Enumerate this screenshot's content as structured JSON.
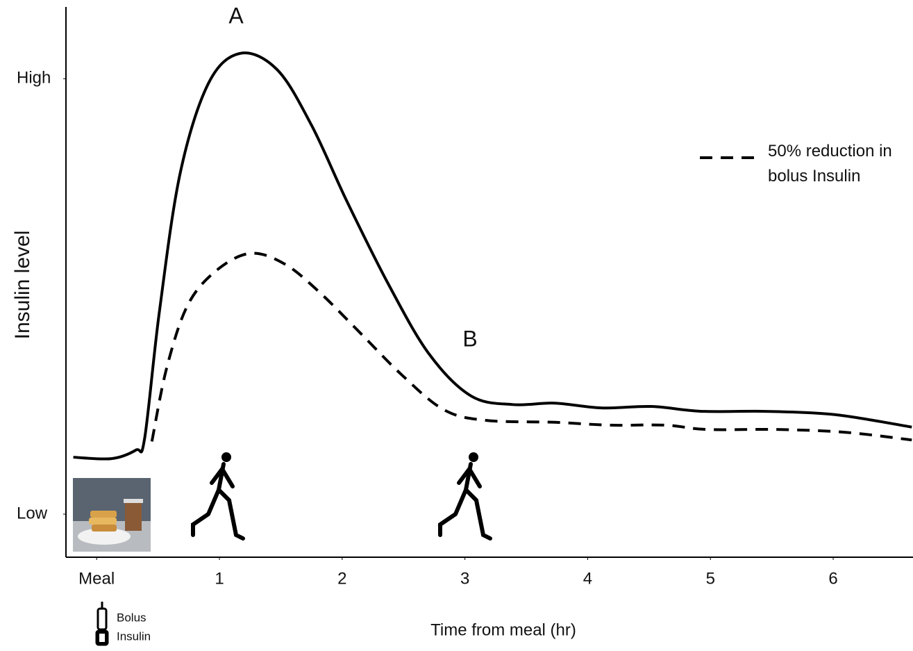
{
  "chart_data": {
    "type": "line",
    "ylabel": "Insulin level",
    "xlabel": "Time  from meal (hr)",
    "annotations": [
      "A",
      "B",
      "Bolus",
      "Insulin"
    ],
    "xlim": [
      -0.25,
      6.65
    ],
    "ylim": [
      0,
      115
    ],
    "xticks": [
      {
        "value": 0,
        "label": "Meal"
      },
      1,
      2,
      3,
      4,
      5,
      6
    ],
    "yticks": [
      {
        "value": 9,
        "label": "Low"
      },
      {
        "value": 100,
        "label": "High"
      }
    ],
    "legend": "upper right",
    "series": [
      {
        "color": "#000000",
        "dash": false,
        "x": [
          -0.19,
          0.12,
          0.32,
          0.39,
          0.51,
          0.68,
          0.91,
          1.17,
          1.47,
          1.75,
          2.04,
          2.38,
          2.71,
          3.05,
          3.39,
          3.73,
          4.11,
          4.52,
          4.92,
          5.42,
          5.87,
          6.16,
          6.64
        ],
        "values": [
          20.9,
          20.6,
          22.4,
          24.7,
          51.1,
          80.2,
          99.0,
          105.3,
          101.9,
          90.3,
          74.3,
          56.9,
          42.4,
          33.7,
          31.9,
          32.2,
          31.2,
          31.5,
          30.5,
          30.5,
          30.1,
          29.3,
          27.2
        ]
      },
      {
        "name": "50% reduction in bolus Insulin",
        "color": "#000000",
        "dash": true,
        "x": [
          0.45,
          0.57,
          0.74,
          0.97,
          1.25,
          1.53,
          1.81,
          2.15,
          2.49,
          2.83,
          3.17,
          3.73,
          4.18,
          4.63,
          4.97,
          5.54,
          6.1,
          6.64
        ],
        "values": [
          24.2,
          39.5,
          52.6,
          59.8,
          63.5,
          61.3,
          55.5,
          46.8,
          38.0,
          30.8,
          28.6,
          28.2,
          27.6,
          27.6,
          26.7,
          26.7,
          26.1,
          24.5
        ]
      }
    ]
  }
}
